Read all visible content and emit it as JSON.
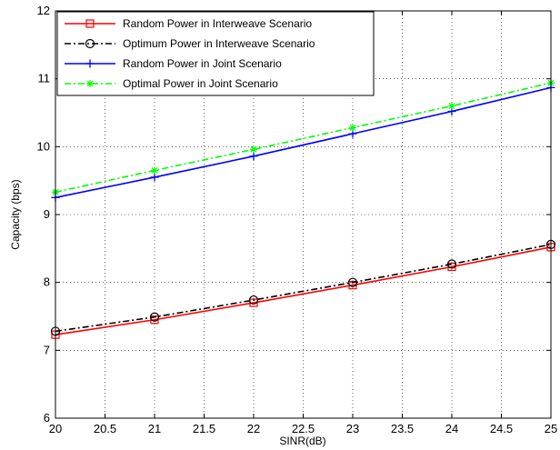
{
  "chart_data": {
    "type": "line",
    "title": "",
    "xlabel": "SINR(dB)",
    "ylabel": "Capacity (bps)",
    "xlim": [
      20,
      25
    ],
    "ylim": [
      6,
      12
    ],
    "xticks": [
      "20",
      "20.5",
      "21",
      "21.5",
      "22",
      "22.5",
      "23",
      "23.5",
      "24",
      "24.5",
      "25"
    ],
    "yticks": [
      "6",
      "7",
      "8",
      "9",
      "10",
      "11",
      "12"
    ],
    "grid": true,
    "legend_position": "top-left",
    "x": [
      20,
      21,
      22,
      23,
      24,
      25
    ],
    "series": [
      {
        "name": "Random Power in Interweave Scenario",
        "values": [
          7.23,
          7.45,
          7.7,
          7.96,
          8.23,
          8.52
        ],
        "color": "#ff0000",
        "linestyle": "solid",
        "marker": "square"
      },
      {
        "name": "Optimum Power in Interweave Scenario",
        "values": [
          7.28,
          7.49,
          7.74,
          8.0,
          8.27,
          8.56
        ],
        "color": "#000000",
        "linestyle": "dashdot",
        "marker": "circle"
      },
      {
        "name": "Random Power in Joint Scenario",
        "values": [
          9.25,
          9.55,
          9.86,
          10.19,
          10.52,
          10.87
        ],
        "color": "#0000ff",
        "linestyle": "solid",
        "marker": "plus"
      },
      {
        "name": "Optimal Power in Joint Scenario",
        "values": [
          9.33,
          9.65,
          9.96,
          10.28,
          10.6,
          10.94
        ],
        "color": "#00ff00",
        "linestyle": "dashdot",
        "marker": "star"
      }
    ]
  }
}
